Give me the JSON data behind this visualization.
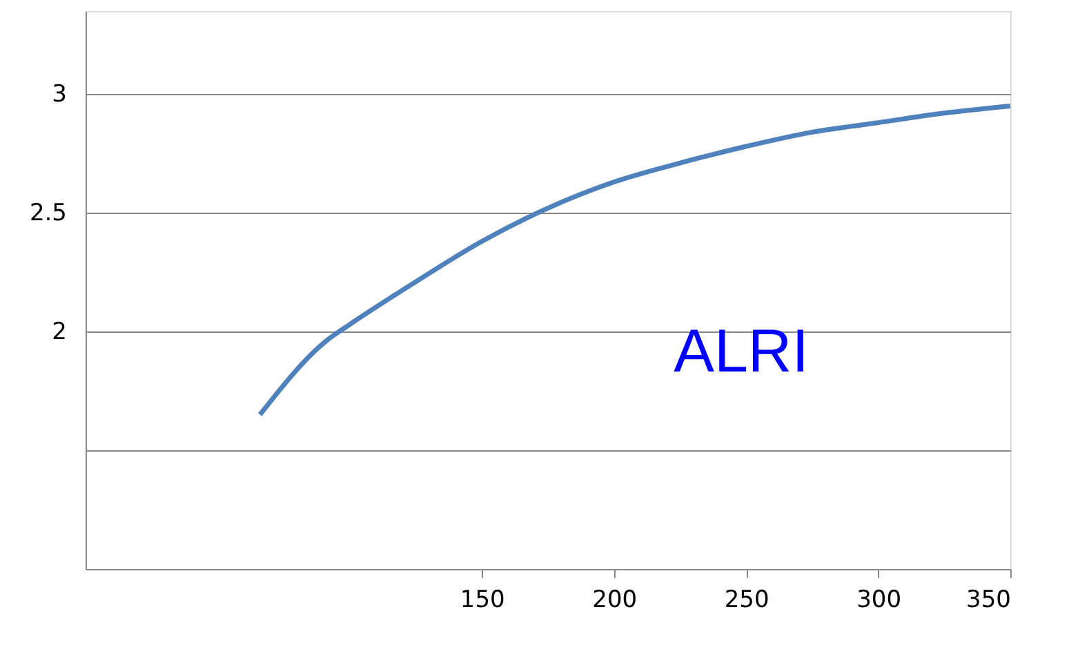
{
  "chart_data": {
    "type": "line",
    "x": [
      66,
      91,
      100,
      125,
      150,
      175,
      200,
      225,
      250,
      275,
      300,
      325,
      350
    ],
    "series": [
      {
        "name": "ALRI",
        "color": "#4f81bd",
        "values": [
          1.65,
          1.96,
          2.03,
          2.21,
          2.38,
          2.52,
          2.63,
          2.71,
          2.78,
          2.84,
          2.88,
          2.92,
          2.95
        ]
      }
    ],
    "xlim": [
      0,
      350
    ],
    "xticks": [
      150,
      200,
      250,
      300,
      350
    ],
    "ylim": [
      1,
      3.35
    ],
    "yticks": [
      {
        "value": 1.5,
        "label": null
      },
      2,
      2.5,
      3
    ],
    "grid": "y",
    "marker": "none",
    "line_style": "solid"
  }
}
